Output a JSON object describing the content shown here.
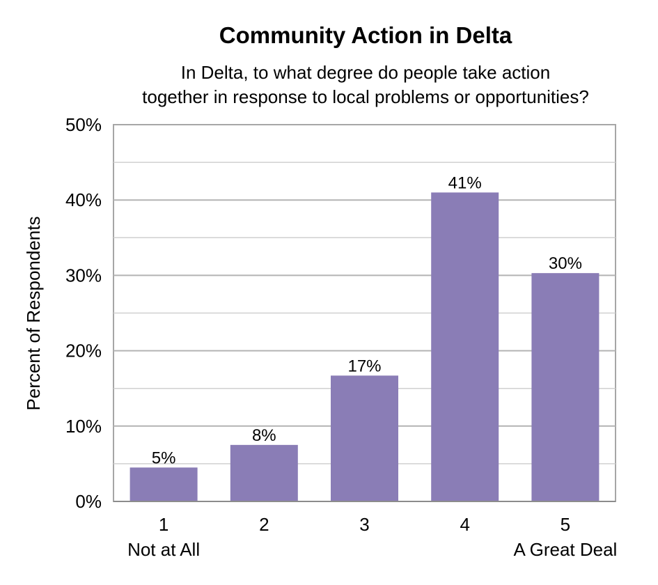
{
  "chart_data": {
    "type": "bar",
    "title": "Community Action in Delta",
    "subtitle_lines": [
      "In Delta, to what degree do people take action",
      "together in response to local problems or opportunities?"
    ],
    "ylabel": "Percent of Respondents",
    "categories": [
      "1",
      "2",
      "3",
      "4",
      "5"
    ],
    "category_sublabels": [
      "Not at All",
      "",
      "",
      "",
      "A Great Deal"
    ],
    "values": [
      4.5,
      7.5,
      16.7,
      41.0,
      30.3
    ],
    "data_labels": [
      "5%",
      "8%",
      "17%",
      "41%",
      "30%"
    ],
    "ylim": [
      0,
      50
    ],
    "yticks": [
      0,
      10,
      20,
      30,
      40,
      50
    ],
    "ytick_labels": [
      "0%",
      "10%",
      "20%",
      "30%",
      "40%",
      "50%"
    ],
    "grid": true,
    "minor_grid": true,
    "bar_color": "#8a7db6",
    "grid_color": "#b3b3b3",
    "legend": "none"
  }
}
